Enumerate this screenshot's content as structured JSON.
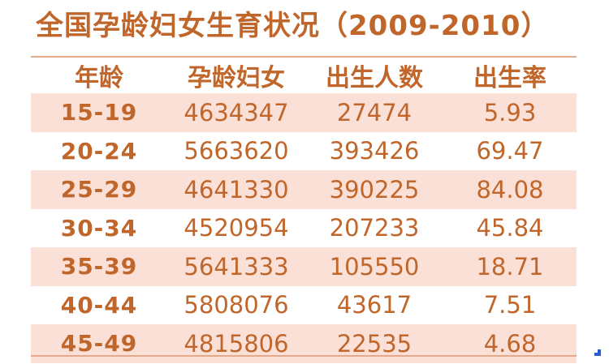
{
  "title": "全国孕龄妇女生育状况（2009-2010）",
  "colors": {
    "text": "#c0662a",
    "row_shade": "#fbe0d8",
    "rule": "#e3a98c"
  },
  "table": {
    "headers": [
      "年龄",
      "孕龄妇女",
      "出生人数",
      "出生率"
    ],
    "rows": [
      [
        "15-19",
        "4634347",
        "27474",
        "5.93"
      ],
      [
        "20-24",
        "5663620",
        "393426",
        "69.47"
      ],
      [
        "25-29",
        "4641330",
        "390225",
        "84.08"
      ],
      [
        "30-34",
        "4520954",
        "207233",
        "45.84"
      ],
      [
        "35-39",
        "5641333",
        "105550",
        "18.71"
      ],
      [
        "40-44",
        "5808076",
        "43617",
        "7.51"
      ],
      [
        "45-49",
        "4815806",
        "22535",
        "4.68"
      ]
    ]
  }
}
